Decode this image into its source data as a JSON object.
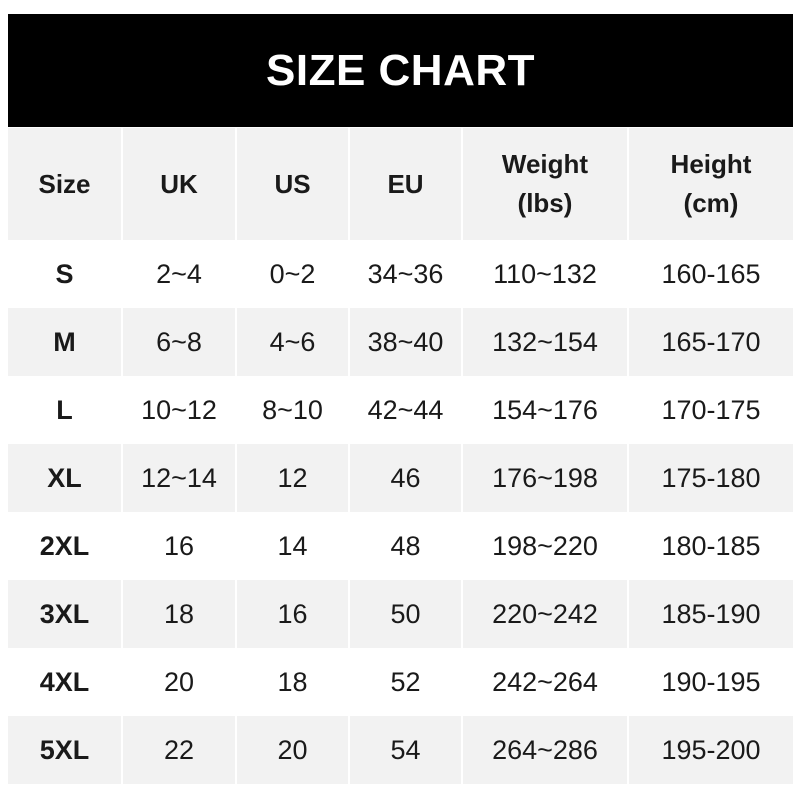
{
  "title": "SIZE CHART",
  "columns": [
    {
      "line1": "Size",
      "line2": ""
    },
    {
      "line1": "UK",
      "line2": ""
    },
    {
      "line1": "US",
      "line2": ""
    },
    {
      "line1": "EU",
      "line2": ""
    },
    {
      "line1": "Weight",
      "line2": "(lbs)"
    },
    {
      "line1": "Height",
      "line2": "(cm)"
    }
  ],
  "rows": [
    [
      "S",
      "2~4",
      "0~2",
      "34~36",
      "110~132",
      "160-165"
    ],
    [
      "M",
      "6~8",
      "4~6",
      "38~40",
      "132~154",
      "165-170"
    ],
    [
      "L",
      "10~12",
      "8~10",
      "42~44",
      "154~176",
      "170-175"
    ],
    [
      "XL",
      "12~14",
      "12",
      "46",
      "176~198",
      "175-180"
    ],
    [
      "2XL",
      "16",
      "14",
      "48",
      "198~220",
      "180-185"
    ],
    [
      "3XL",
      "18",
      "16",
      "50",
      "220~242",
      "185-190"
    ],
    [
      "4XL",
      "20",
      "18",
      "52",
      "242~264",
      "190-195"
    ],
    [
      "5XL",
      "22",
      "20",
      "54",
      "264~286",
      "195-200"
    ]
  ],
  "colors": {
    "banner": "#000000",
    "header_row": "#f2f2f2",
    "stripe": "#f2f2f2"
  }
}
